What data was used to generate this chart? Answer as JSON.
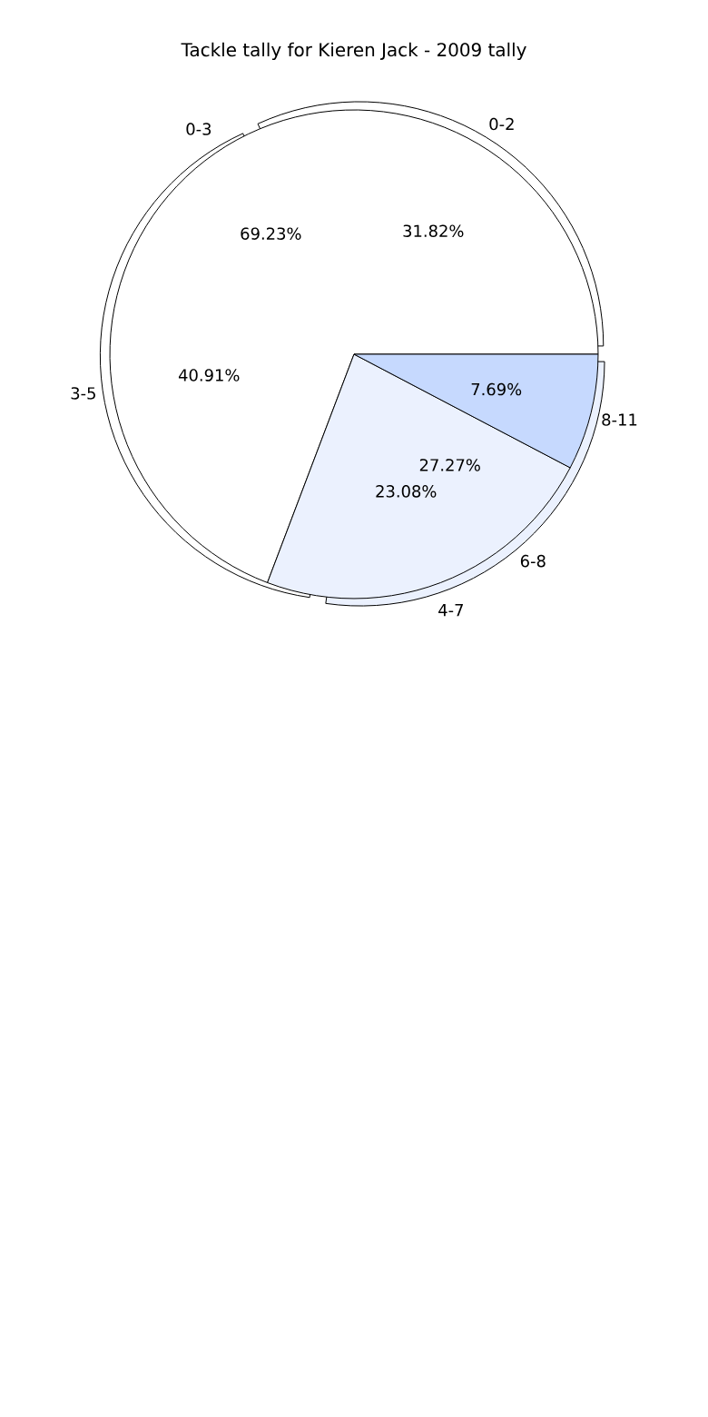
{
  "chart_data": [
    {
      "type": "pie",
      "title": "Tackle tally for Kieren Jack - 2009 tally",
      "categories": [
        "0-2",
        "3-5",
        "6-8"
      ],
      "values": [
        31.82,
        40.91,
        27.27
      ],
      "colors": [
        "#ffffff",
        "#ffffff",
        "#ebf1fe"
      ],
      "value_labels": [
        "31.82%",
        "40.91%",
        "27.27%"
      ]
    },
    {
      "type": "pie",
      "categories": [
        "0-3",
        "4-7",
        "8-11"
      ],
      "values": [
        69.23,
        23.08,
        7.69
      ],
      "colors": [
        "#ffffff",
        "#ebf1fe",
        "#c6d9fe"
      ],
      "value_labels": [
        "69.23%",
        "23.08%",
        "7.69%"
      ]
    }
  ]
}
